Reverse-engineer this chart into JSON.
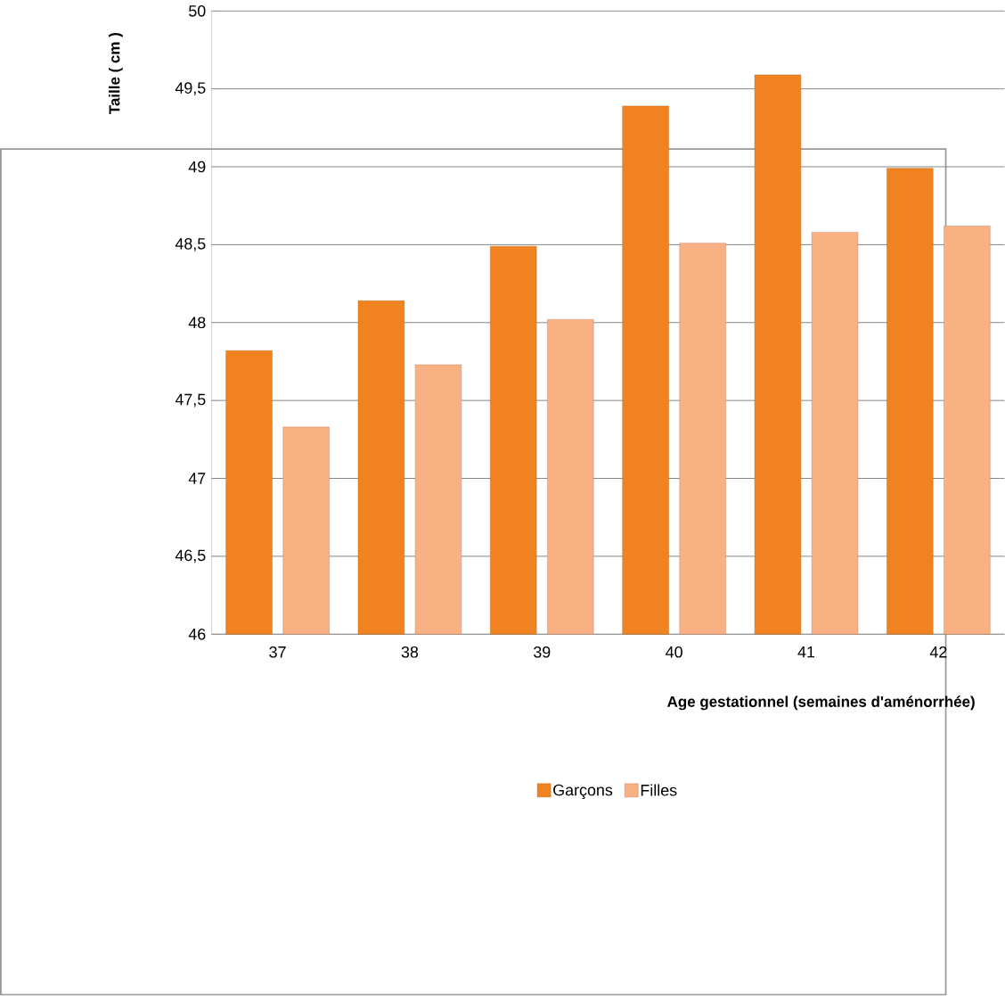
{
  "chart_data": {
    "type": "bar",
    "xlabel": "Age gestationnel (semaines d'aménorrhée)",
    "ylabel": "Taille ( cm )",
    "categories": [
      "37",
      "38",
      "39",
      "40",
      "41",
      "42"
    ],
    "series": [
      {
        "name": "Garçons",
        "color": "#f0831f",
        "values": [
          47.82,
          48.14,
          48.49,
          49.39,
          49.59,
          48.99
        ]
      },
      {
        "name": "Filles",
        "color": "#f9b082",
        "values": [
          47.33,
          47.73,
          48.02,
          48.51,
          48.58,
          48.62
        ]
      }
    ],
    "ylim": [
      46,
      50
    ],
    "yticks": [
      46,
      {
        "value": 46.5,
        "label": "46,5"
      },
      47,
      {
        "value": 47.5,
        "label": "47,5"
      },
      48,
      {
        "value": 48.5,
        "label": "48,5"
      },
      49,
      {
        "value": 49.5,
        "label": "49,5"
      },
      50
    ],
    "grid": "y",
    "legend": "bottom"
  }
}
